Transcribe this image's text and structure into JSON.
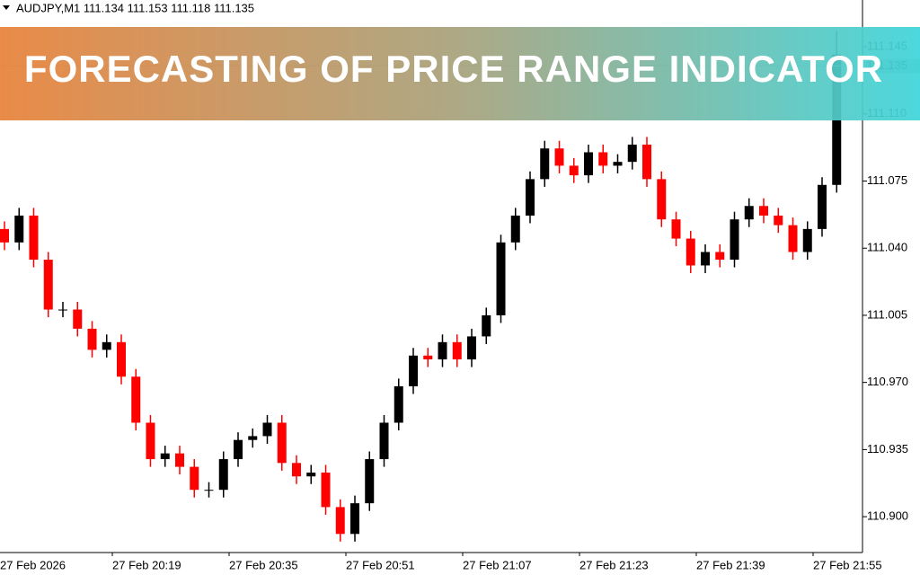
{
  "chart_data": {
    "type": "candlestick",
    "title": "AUDJPY,M1 111.134 111.153 111.118 111.135",
    "banner": "FORECASTING OF PRICE RANGE INDICATOR",
    "categories": [
      "27 Feb 2026",
      null,
      null,
      null,
      null,
      null,
      null,
      null,
      "27 Feb 20:19",
      null,
      null,
      null,
      null,
      null,
      null,
      null,
      "27 Feb 20:35",
      null,
      null,
      null,
      null,
      null,
      null,
      null,
      "27 Feb 20:51",
      null,
      null,
      null,
      null,
      null,
      null,
      null,
      "27 Feb 21:07",
      null,
      null,
      null,
      null,
      null,
      null,
      null,
      "27 Feb 21:23",
      null,
      null,
      null,
      null,
      null,
      null,
      null,
      "27 Feb 21:39",
      null,
      null,
      null,
      null,
      null,
      null,
      null,
      "27 Feb 21:55",
      null
    ],
    "open": [
      111.05,
      111.043,
      111.057,
      111.034,
      111.008,
      111.008,
      110.998,
      110.987,
      110.991,
      110.973,
      110.949,
      110.93,
      110.933,
      110.926,
      110.914,
      110.914,
      110.93,
      110.94,
      110.942,
      110.949,
      110.928,
      110.921,
      110.923,
      110.905,
      110.891,
      110.907,
      110.93,
      110.949,
      110.968,
      110.984,
      110.982,
      110.991,
      110.982,
      110.994,
      111.005,
      111.043,
      111.057,
      111.076,
      111.092,
      111.083,
      111.078,
      111.09,
      111.083,
      111.085,
      111.094,
      111.076,
      111.055,
      111.045,
      111.031,
      111.038,
      111.034,
      111.055,
      111.062,
      111.057,
      111.052,
      111.038,
      111.05,
      111.073
    ],
    "high": [
      111.054,
      111.061,
      111.061,
      111.038,
      111.012,
      111.012,
      111.002,
      110.995,
      110.995,
      110.977,
      110.953,
      110.937,
      110.937,
      110.93,
      110.918,
      110.934,
      110.944,
      110.946,
      110.953,
      110.953,
      110.932,
      110.927,
      110.927,
      110.909,
      110.911,
      110.934,
      110.953,
      110.972,
      110.988,
      110.988,
      110.995,
      110.995,
      110.998,
      111.009,
      111.047,
      111.061,
      111.08,
      111.096,
      111.096,
      111.087,
      111.094,
      111.094,
      111.089,
      111.098,
      111.098,
      111.08,
      111.059,
      111.049,
      111.042,
      111.042,
      111.059,
      111.066,
      111.066,
      111.061,
      111.056,
      111.054,
      111.077,
      111.153
    ],
    "low": [
      111.039,
      111.039,
      111.03,
      111.004,
      111.004,
      110.994,
      110.983,
      110.983,
      110.969,
      110.945,
      110.926,
      110.926,
      110.922,
      110.91,
      110.91,
      110.91,
      110.926,
      110.936,
      110.938,
      110.924,
      110.917,
      110.917,
      110.901,
      110.887,
      110.887,
      110.903,
      110.926,
      110.945,
      110.964,
      110.978,
      110.978,
      110.978,
      110.978,
      110.99,
      111.001,
      111.039,
      111.053,
      111.072,
      111.079,
      111.074,
      111.074,
      111.079,
      111.079,
      111.081,
      111.072,
      111.051,
      111.041,
      111.027,
      111.027,
      111.03,
      111.03,
      111.051,
      111.053,
      111.048,
      111.034,
      111.034,
      111.046,
      111.069
    ],
    "close": [
      111.043,
      111.057,
      111.034,
      111.008,
      111.008,
      110.998,
      110.987,
      110.991,
      110.973,
      110.949,
      110.93,
      110.933,
      110.926,
      110.914,
      110.914,
      110.93,
      110.94,
      110.942,
      110.949,
      110.928,
      110.921,
      110.923,
      110.905,
      110.891,
      110.907,
      110.93,
      110.949,
      110.968,
      110.984,
      110.982,
      110.991,
      110.982,
      110.994,
      111.005,
      111.043,
      111.057,
      111.076,
      111.092,
      111.083,
      111.078,
      111.09,
      111.083,
      111.085,
      111.094,
      111.076,
      111.055,
      111.045,
      111.031,
      111.038,
      111.034,
      111.055,
      111.062,
      111.057,
      111.052,
      111.038,
      111.05,
      111.073,
      111.141
    ],
    "up_color": "#000000",
    "down_color": "#ff0000",
    "current_price": 111.135,
    "ylim": [
      110.8813,
      111.1694
    ],
    "yticks": [
      {
        "value": 110.9,
        "label": "110.900"
      },
      110.935,
      {
        "value": 110.97,
        "label": "110.970"
      },
      111.005,
      {
        "value": 111.04,
        "label": "111.040"
      },
      111.075,
      {
        "value": 111.11,
        "label": "111.110"
      },
      111.145
    ]
  }
}
